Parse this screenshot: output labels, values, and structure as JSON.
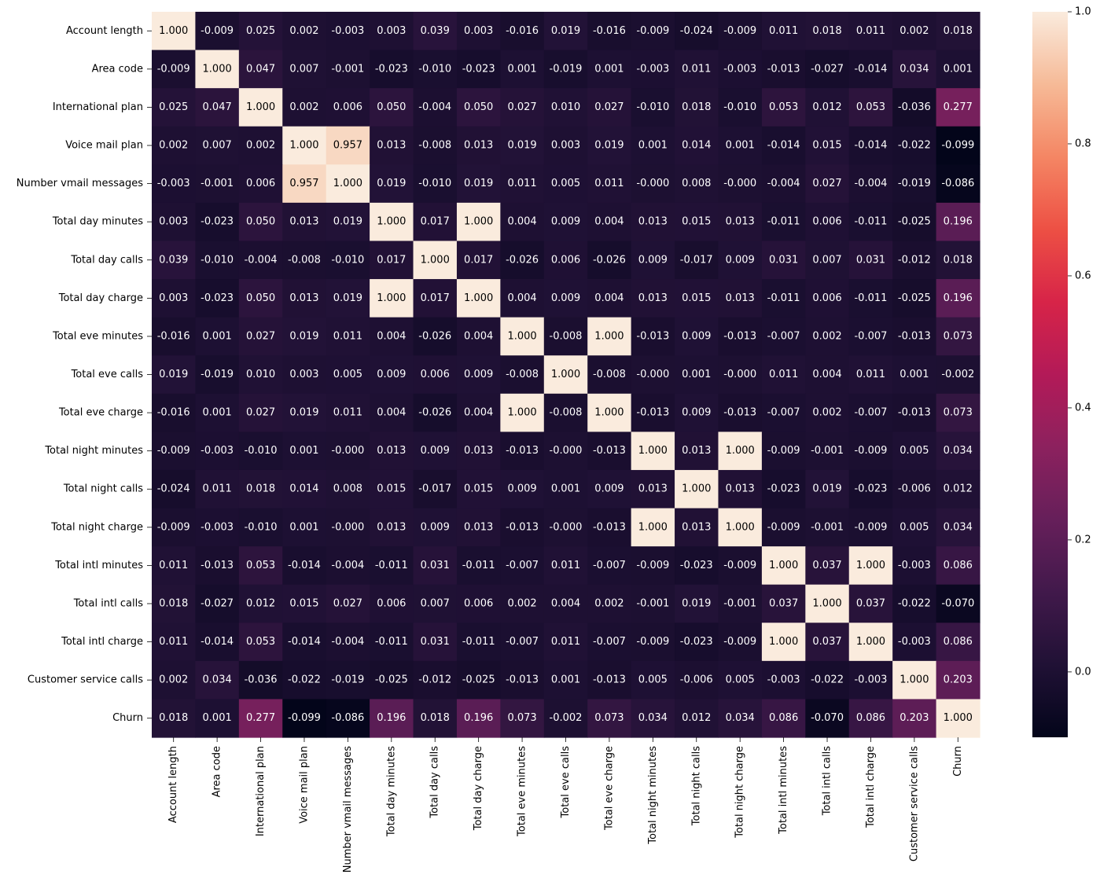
{
  "chart_data": {
    "type": "heatmap",
    "title": "",
    "xlabel": "",
    "ylabel": "",
    "labels": [
      "Account length",
      "Area code",
      "International plan",
      "Voice mail plan",
      "Number vmail messages",
      "Total day minutes",
      "Total day calls",
      "Total day charge",
      "Total eve minutes",
      "Total eve calls",
      "Total eve charge",
      "Total night minutes",
      "Total night calls",
      "Total night charge",
      "Total intl minutes",
      "Total intl calls",
      "Total intl charge",
      "Customer service calls",
      "Churn"
    ],
    "values": [
      [
        1.0,
        -0.009,
        0.025,
        0.002,
        -0.003,
        0.003,
        0.039,
        0.003,
        -0.016,
        0.019,
        -0.016,
        -0.009,
        -0.024,
        -0.009,
        0.011,
        0.018,
        0.011,
        0.002,
        0.018
      ],
      [
        -0.009,
        1.0,
        0.047,
        0.007,
        -0.001,
        -0.023,
        -0.01,
        -0.023,
        0.001,
        -0.019,
        0.001,
        -0.003,
        0.011,
        -0.003,
        -0.013,
        -0.027,
        -0.014,
        0.034,
        0.001
      ],
      [
        0.025,
        0.047,
        1.0,
        0.002,
        0.006,
        0.05,
        -0.004,
        0.05,
        0.027,
        0.01,
        0.027,
        -0.01,
        0.018,
        -0.01,
        0.053,
        0.012,
        0.053,
        -0.036,
        0.277
      ],
      [
        0.002,
        0.007,
        0.002,
        1.0,
        0.957,
        0.013,
        -0.008,
        0.013,
        0.019,
        0.003,
        0.019,
        0.001,
        0.014,
        0.001,
        -0.014,
        0.015,
        -0.014,
        -0.022,
        -0.099
      ],
      [
        -0.003,
        -0.001,
        0.006,
        0.957,
        1.0,
        0.019,
        -0.01,
        0.019,
        0.011,
        0.005,
        0.011,
        -0.0,
        0.008,
        -0.0,
        -0.004,
        0.027,
        -0.004,
        -0.019,
        -0.086
      ],
      [
        0.003,
        -0.023,
        0.05,
        0.013,
        0.019,
        1.0,
        0.017,
        1.0,
        0.004,
        0.009,
        0.004,
        0.013,
        0.015,
        0.013,
        -0.011,
        0.006,
        -0.011,
        -0.025,
        0.196
      ],
      [
        0.039,
        -0.01,
        -0.004,
        -0.008,
        -0.01,
        0.017,
        1.0,
        0.017,
        -0.026,
        0.006,
        -0.026,
        0.009,
        -0.017,
        0.009,
        0.031,
        0.007,
        0.031,
        -0.012,
        0.018
      ],
      [
        0.003,
        -0.023,
        0.05,
        0.013,
        0.019,
        1.0,
        0.017,
        1.0,
        0.004,
        0.009,
        0.004,
        0.013,
        0.015,
        0.013,
        -0.011,
        0.006,
        -0.011,
        -0.025,
        0.196
      ],
      [
        -0.016,
        0.001,
        0.027,
        0.019,
        0.011,
        0.004,
        -0.026,
        0.004,
        1.0,
        -0.008,
        1.0,
        -0.013,
        0.009,
        -0.013,
        -0.007,
        0.002,
        -0.007,
        -0.013,
        0.073
      ],
      [
        0.019,
        -0.019,
        0.01,
        0.003,
        0.005,
        0.009,
        0.006,
        0.009,
        -0.008,
        1.0,
        -0.008,
        -0.0,
        0.001,
        -0.0,
        0.011,
        0.004,
        0.011,
        0.001,
        -0.002
      ],
      [
        -0.016,
        0.001,
        0.027,
        0.019,
        0.011,
        0.004,
        -0.026,
        0.004,
        1.0,
        -0.008,
        1.0,
        -0.013,
        0.009,
        -0.013,
        -0.007,
        0.002,
        -0.007,
        -0.013,
        0.073
      ],
      [
        -0.009,
        -0.003,
        -0.01,
        0.001,
        -0.0,
        0.013,
        0.009,
        0.013,
        -0.013,
        -0.0,
        -0.013,
        1.0,
        0.013,
        1.0,
        -0.009,
        -0.001,
        -0.009,
        0.005,
        0.034
      ],
      [
        -0.024,
        0.011,
        0.018,
        0.014,
        0.008,
        0.015,
        -0.017,
        0.015,
        0.009,
        0.001,
        0.009,
        0.013,
        1.0,
        0.013,
        -0.023,
        0.019,
        -0.023,
        -0.006,
        0.012
      ],
      [
        -0.009,
        -0.003,
        -0.01,
        0.001,
        -0.0,
        0.013,
        0.009,
        0.013,
        -0.013,
        -0.0,
        -0.013,
        1.0,
        0.013,
        1.0,
        -0.009,
        -0.001,
        -0.009,
        0.005,
        0.034
      ],
      [
        0.011,
        -0.013,
        0.053,
        -0.014,
        -0.004,
        -0.011,
        0.031,
        -0.011,
        -0.007,
        0.011,
        -0.007,
        -0.009,
        -0.023,
        -0.009,
        1.0,
        0.037,
        1.0,
        -0.003,
        0.086
      ],
      [
        0.018,
        -0.027,
        0.012,
        0.015,
        0.027,
        0.006,
        0.007,
        0.006,
        0.002,
        0.004,
        0.002,
        -0.001,
        0.019,
        -0.001,
        0.037,
        1.0,
        0.037,
        -0.022,
        -0.07
      ],
      [
        0.011,
        -0.014,
        0.053,
        -0.014,
        -0.004,
        -0.011,
        0.031,
        -0.011,
        -0.007,
        0.011,
        -0.007,
        -0.009,
        -0.023,
        -0.009,
        1.0,
        0.037,
        1.0,
        -0.003,
        0.086
      ],
      [
        0.002,
        0.034,
        -0.036,
        -0.022,
        -0.019,
        -0.025,
        -0.012,
        -0.025,
        -0.013,
        0.001,
        -0.013,
        0.005,
        -0.006,
        0.005,
        -0.003,
        -0.022,
        -0.003,
        1.0,
        0.203
      ],
      [
        0.018,
        0.001,
        0.277,
        -0.099,
        -0.086,
        0.196,
        0.018,
        0.196,
        0.073,
        -0.002,
        0.073,
        0.034,
        0.012,
        0.034,
        0.086,
        -0.07,
        0.086,
        0.203,
        1.0
      ]
    ],
    "value_format": "0.000",
    "colormap": "rocket",
    "colorbar": {
      "range": [
        -0.099,
        1.0
      ],
      "ticks": [
        0.0,
        0.2,
        0.4,
        0.6,
        0.8,
        1.0
      ],
      "tick_labels": [
        "0.0",
        "0.2",
        "0.4",
        "0.6",
        "0.8",
        "1.0"
      ],
      "placement": "right"
    },
    "colors": {
      "dark_text": "#000000",
      "light_text": "#ffffff"
    }
  }
}
